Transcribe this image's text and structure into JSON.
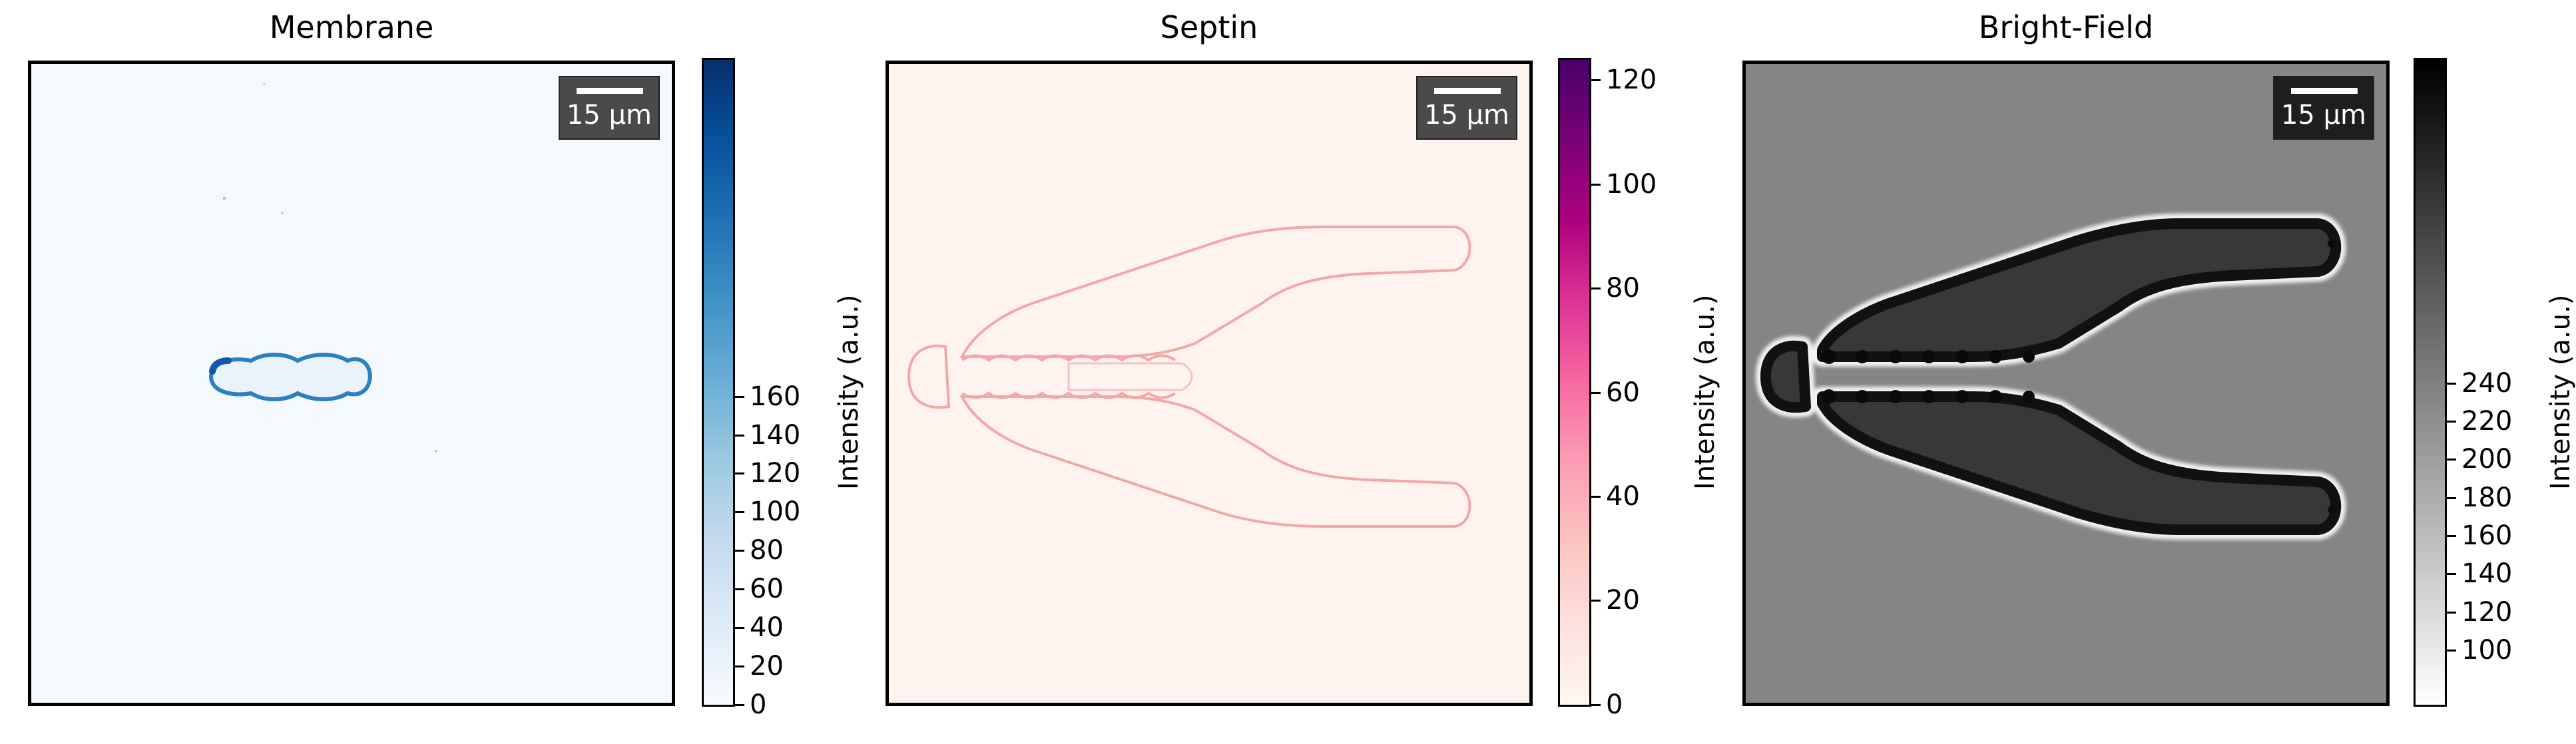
{
  "panels": [
    {
      "title": "Membrane",
      "scale_bar": "15 µm",
      "colorbar": {
        "label": "Intensity (a.u.)",
        "ticks": [
          "0",
          "20",
          "40",
          "60",
          "80",
          "100",
          "120",
          "140",
          "160"
        ],
        "colors": [
          "#f7fbff",
          "#08306b"
        ]
      }
    },
    {
      "title": "Septin",
      "scale_bar": "15 µm",
      "colorbar": {
        "label": "Intensity (a.u.)",
        "ticks": [
          "0",
          "20",
          "40",
          "60",
          "80",
          "100",
          "120"
        ],
        "colors": [
          "#fff7f3",
          "#fcc5c0",
          "#f768a1",
          "#ae017e",
          "#49006a"
        ]
      }
    },
    {
      "title": "Bright-Field",
      "scale_bar": "15 µm",
      "colorbar": {
        "label": "Intensity (a.u.)",
        "ticks": [
          "100",
          "120",
          "140",
          "160",
          "180",
          "200",
          "220",
          "240"
        ],
        "colors": [
          "#ffffff",
          "#000000"
        ]
      }
    }
  ]
}
